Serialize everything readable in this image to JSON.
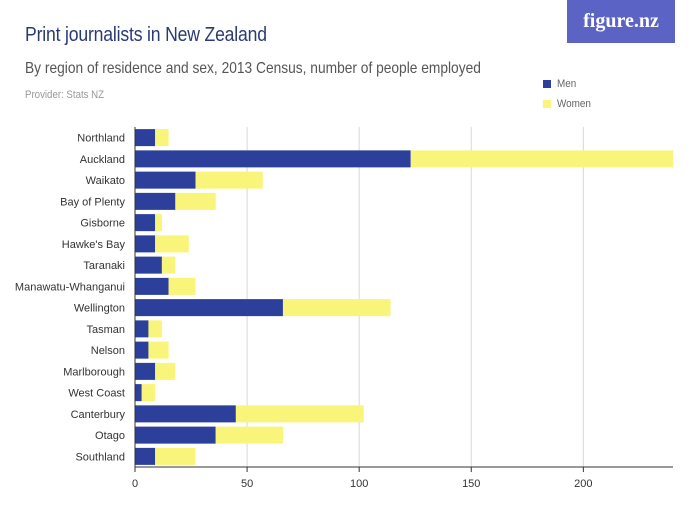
{
  "header": {
    "title": "Print journalists in New Zealand",
    "subtitle": "By region of residence and sex, 2013 Census, number of people employed",
    "provider": "Provider: Stats NZ",
    "logo_text": "figure.nz"
  },
  "colors": {
    "men": "#2b3f9b",
    "women": "#f8f57a",
    "logo_bg": "#5b63c4",
    "axis": "#333333",
    "grid": "#d8d8d8"
  },
  "chart_data": {
    "type": "bar",
    "orientation": "horizontal",
    "stacked": true,
    "categories": [
      "Northland",
      "Auckland",
      "Waikato",
      "Bay of Plenty",
      "Gisborne",
      "Hawke's Bay",
      "Taranaki",
      "Manawatu-Whanganui",
      "Wellington",
      "Tasman",
      "Nelson",
      "Marlborough",
      "West Coast",
      "Canterbury",
      "Otago",
      "Southland"
    ],
    "series": [
      {
        "name": "Men",
        "values": [
          9,
          123,
          27,
          18,
          9,
          9,
          12,
          15,
          66,
          6,
          6,
          9,
          3,
          45,
          36,
          9
        ]
      },
      {
        "name": "Women",
        "values": [
          6,
          117,
          30,
          18,
          3,
          15,
          6,
          12,
          48,
          6,
          9,
          9,
          6,
          57,
          30,
          18
        ]
      }
    ],
    "xticks": [
      0,
      50,
      100,
      150,
      200
    ],
    "xlim": [
      0,
      240
    ],
    "title": "Print journalists in New Zealand",
    "xlabel": "",
    "ylabel": "",
    "legend_position": "top-right",
    "grid": true
  }
}
